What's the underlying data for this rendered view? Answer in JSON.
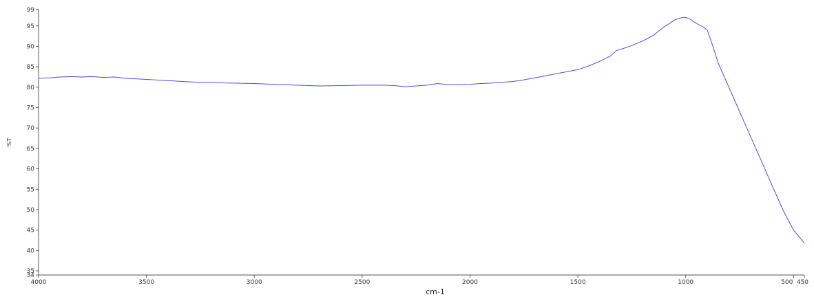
{
  "chart_data": {
    "type": "line",
    "title": "",
    "xlabel": "cm-1",
    "ylabel": "%T",
    "xlim": [
      4000,
      450
    ],
    "ylim": [
      34,
      99
    ],
    "x_ticks": [
      4000,
      3500,
      3000,
      2500,
      2000,
      1500,
      1000,
      500,
      450
    ],
    "x_tick_labels": [
      "4000",
      "3500",
      "3000",
      "2500",
      "2000",
      "1500",
      "1000",
      "500",
      "450"
    ],
    "y_ticks": [
      34,
      35,
      40,
      45,
      50,
      55,
      60,
      65,
      70,
      75,
      80,
      85,
      90,
      95,
      99
    ],
    "y_tick_labels": [
      "34",
      "35",
      "40",
      "45",
      "50",
      "55",
      "60",
      "65",
      "70",
      "75",
      "80",
      "85",
      "90",
      "95",
      "99"
    ],
    "grid": false,
    "legend": "none",
    "series": [
      {
        "color": "#4a4ae6",
        "x": [
          4000,
          3950,
          3900,
          3850,
          3800,
          3750,
          3700,
          3650,
          3600,
          3500,
          3400,
          3300,
          3200,
          3100,
          3000,
          2900,
          2800,
          2700,
          2600,
          2500,
          2400,
          2350,
          2300,
          2200,
          2150,
          2100,
          2000,
          1950,
          1900,
          1800,
          1750,
          1700,
          1650,
          1600,
          1550,
          1500,
          1450,
          1400,
          1350,
          1320,
          1300,
          1250,
          1200,
          1150,
          1100,
          1050,
          1020,
          1000,
          980,
          950,
          920,
          900,
          880,
          850,
          800,
          750,
          700,
          650,
          600,
          550,
          500,
          450
        ],
        "y": [
          82.2,
          82.3,
          82.5,
          82.6,
          82.5,
          82.6,
          82.4,
          82.5,
          82.2,
          81.9,
          81.6,
          81.3,
          81.1,
          81.0,
          80.9,
          80.7,
          80.5,
          80.3,
          80.4,
          80.5,
          80.5,
          80.4,
          80.1,
          80.5,
          80.9,
          80.6,
          80.7,
          80.9,
          81.0,
          81.4,
          81.8,
          82.3,
          82.8,
          83.3,
          83.8,
          84.3,
          85.2,
          86.3,
          87.6,
          89.0,
          89.3,
          90.2,
          91.3,
          92.7,
          94.8,
          96.5,
          97.0,
          97.1,
          96.7,
          95.6,
          94.8,
          94.0,
          91.0,
          86.0,
          80.0,
          74.0,
          68.0,
          62.0,
          56.0,
          50.0,
          45.0,
          41.8
        ]
      }
    ]
  }
}
